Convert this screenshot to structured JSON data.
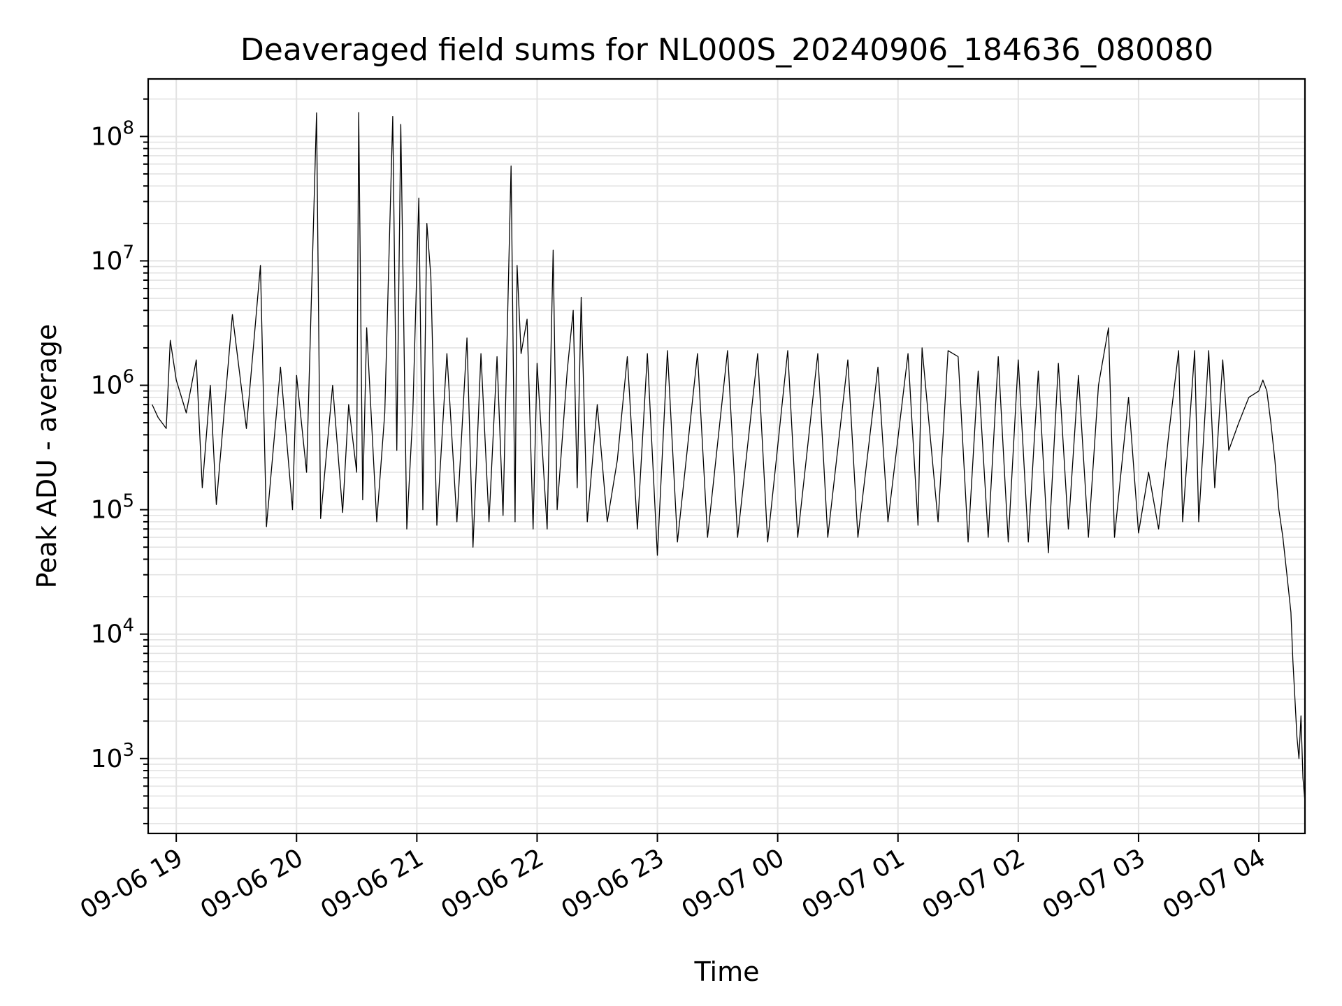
{
  "chart_data": {
    "type": "line",
    "title": "Deaveraged field sums for NL000S_20240906_184636_080080",
    "xlabel": "Time",
    "ylabel": "Peak ADU - average",
    "x_scale": "time",
    "y_scale": "log",
    "xlim": [
      "09-06 18:46",
      "09-07 04:23"
    ],
    "ylim": [
      250,
      290000000
    ],
    "x_ticks": [
      "09-06 19",
      "09-06 20",
      "09-06 21",
      "09-06 22",
      "09-06 23",
      "09-07 00",
      "09-07 01",
      "09-07 02",
      "09-07 03",
      "09-07 04"
    ],
    "y_ticks": [
      {
        "base": "10",
        "exp": "3",
        "value": 1000
      },
      {
        "base": "10",
        "exp": "4",
        "value": 10000
      },
      {
        "base": "10",
        "exp": "5",
        "value": 100000
      },
      {
        "base": "10",
        "exp": "6",
        "value": 1000000
      },
      {
        "base": "10",
        "exp": "7",
        "value": 10000000
      },
      {
        "base": "10",
        "exp": "8",
        "value": 100000000
      }
    ],
    "grid": true,
    "line_color": "#000000",
    "series": [
      {
        "points": [
          [
            "09-06 18:48",
            700000
          ],
          [
            "09-06 18:51",
            550000
          ],
          [
            "09-06 18:55",
            450000
          ],
          [
            "09-06 18:57",
            2300000
          ],
          [
            "09-06 19:00",
            1100000
          ],
          [
            "09-06 19:05",
            600000
          ],
          [
            "09-06 19:10",
            1600000
          ],
          [
            "09-06 19:13",
            150000
          ],
          [
            "09-06 19:17",
            1000000
          ],
          [
            "09-06 19:20",
            110000
          ],
          [
            "09-06 19:28",
            3700000
          ],
          [
            "09-06 19:35",
            450000
          ],
          [
            "09-06 19:42",
            9200000
          ],
          [
            "09-06 19:45",
            73000
          ],
          [
            "09-06 19:52",
            1400000
          ],
          [
            "09-06 19:58",
            100000
          ],
          [
            "09-06 20:00",
            1200000
          ],
          [
            "09-06 20:05",
            200000
          ],
          [
            "09-06 20:10",
            155000000
          ],
          [
            "09-06 20:12",
            85000
          ],
          [
            "09-06 20:18",
            1000000
          ],
          [
            "09-06 20:23",
            95000
          ],
          [
            "09-06 20:26",
            700000
          ],
          [
            "09-06 20:30",
            200000
          ],
          [
            "09-06 20:31",
            156000000
          ],
          [
            "09-06 20:33",
            120000
          ],
          [
            "09-06 20:35",
            2900000
          ],
          [
            "09-06 20:40",
            80000
          ],
          [
            "09-06 20:44",
            600000
          ],
          [
            "09-06 20:48",
            145000000
          ],
          [
            "09-06 20:50",
            300000
          ],
          [
            "09-06 20:52",
            125000000
          ],
          [
            "09-06 20:55",
            70000
          ],
          [
            "09-06 20:58",
            600000
          ],
          [
            "09-06 21:01",
            32000000
          ],
          [
            "09-06 21:03",
            100000
          ],
          [
            "09-06 21:05",
            20000000
          ],
          [
            "09-06 21:07",
            7500000
          ],
          [
            "09-06 21:10",
            75000
          ],
          [
            "09-06 21:15",
            1800000
          ],
          [
            "09-06 21:20",
            80000
          ],
          [
            "09-06 21:25",
            2400000
          ],
          [
            "09-06 21:28",
            50000
          ],
          [
            "09-06 21:32",
            1800000
          ],
          [
            "09-06 21:36",
            80000
          ],
          [
            "09-06 21:40",
            1700000
          ],
          [
            "09-06 21:43",
            90000
          ],
          [
            "09-06 21:47",
            58000000
          ],
          [
            "09-06 21:49",
            80000
          ],
          [
            "09-06 21:50",
            9200000
          ],
          [
            "09-06 21:52",
            1800000
          ],
          [
            "09-06 21:55",
            3400000
          ],
          [
            "09-06 21:58",
            70000
          ],
          [
            "09-06 22:00",
            1500000
          ],
          [
            "09-06 22:05",
            70000
          ],
          [
            "09-06 22:08",
            12200000
          ],
          [
            "09-06 22:10",
            100000
          ],
          [
            "09-06 22:15",
            1300000
          ],
          [
            "09-06 22:18",
            4000000
          ],
          [
            "09-06 22:20",
            150000
          ],
          [
            "09-06 22:22",
            5100000
          ],
          [
            "09-06 22:25",
            80000
          ],
          [
            "09-06 22:30",
            700000
          ],
          [
            "09-06 22:35",
            80000
          ],
          [
            "09-06 22:40",
            250000
          ],
          [
            "09-06 22:45",
            1700000
          ],
          [
            "09-06 22:50",
            70000
          ],
          [
            "09-06 22:55",
            1800000
          ],
          [
            "09-06 23:00",
            43000
          ],
          [
            "09-06 23:05",
            1900000
          ],
          [
            "09-06 23:10",
            55000
          ],
          [
            "09-06 23:20",
            1800000
          ],
          [
            "09-06 23:25",
            60000
          ],
          [
            "09-06 23:35",
            1900000
          ],
          [
            "09-06 23:40",
            60000
          ],
          [
            "09-06 23:50",
            1800000
          ],
          [
            "09-06 23:55",
            55000
          ],
          [
            "09-07 00:05",
            1900000
          ],
          [
            "09-07 00:10",
            60000
          ],
          [
            "09-07 00:20",
            1800000
          ],
          [
            "09-07 00:25",
            60000
          ],
          [
            "09-07 00:35",
            1600000
          ],
          [
            "09-07 00:40",
            60000
          ],
          [
            "09-07 00:50",
            1400000
          ],
          [
            "09-07 00:55",
            80000
          ],
          [
            "09-07 01:05",
            1800000
          ],
          [
            "09-07 01:10",
            75000
          ],
          [
            "09-07 01:12",
            2000000
          ],
          [
            "09-07 01:20",
            80000
          ],
          [
            "09-07 01:25",
            1900000
          ],
          [
            "09-07 01:30",
            1700000
          ],
          [
            "09-07 01:35",
            55000
          ],
          [
            "09-07 01:40",
            1300000
          ],
          [
            "09-07 01:45",
            60000
          ],
          [
            "09-07 01:50",
            1700000
          ],
          [
            "09-07 01:55",
            55000
          ],
          [
            "09-07 02:00",
            1600000
          ],
          [
            "09-07 02:05",
            55000
          ],
          [
            "09-07 02:10",
            1300000
          ],
          [
            "09-07 02:15",
            45000
          ],
          [
            "09-07 02:20",
            1500000
          ],
          [
            "09-07 02:25",
            70000
          ],
          [
            "09-07 02:30",
            1200000
          ],
          [
            "09-07 02:35",
            60000
          ],
          [
            "09-07 02:40",
            1000000
          ],
          [
            "09-07 02:45",
            2900000
          ],
          [
            "09-07 02:48",
            60000
          ],
          [
            "09-07 02:55",
            800000
          ],
          [
            "09-07 03:00",
            65000
          ],
          [
            "09-07 03:05",
            200000
          ],
          [
            "09-07 03:10",
            70000
          ],
          [
            "09-07 03:15",
            400000
          ],
          [
            "09-07 03:20",
            1900000
          ],
          [
            "09-07 03:22",
            80000
          ],
          [
            "09-07 03:28",
            1900000
          ],
          [
            "09-07 03:30",
            80000
          ],
          [
            "09-07 03:35",
            1900000
          ],
          [
            "09-07 03:38",
            150000
          ],
          [
            "09-07 03:42",
            1600000
          ],
          [
            "09-07 03:45",
            300000
          ],
          [
            "09-07 03:50",
            500000
          ],
          [
            "09-07 03:55",
            800000
          ],
          [
            "09-07 04:00",
            900000
          ],
          [
            "09-07 04:02",
            1100000
          ],
          [
            "09-07 04:04",
            900000
          ],
          [
            "09-07 04:06",
            500000
          ],
          [
            "09-07 04:08",
            250000
          ],
          [
            "09-07 04:10",
            100000
          ],
          [
            "09-07 04:12",
            60000
          ],
          [
            "09-07 04:14",
            30000
          ],
          [
            "09-07 04:16",
            15000
          ],
          [
            "09-07 04:17",
            6000
          ],
          [
            "09-07 04:18",
            3000
          ],
          [
            "09-07 04:19",
            1500
          ],
          [
            "09-07 04:20",
            1000
          ],
          [
            "09-07 04:21",
            2200
          ],
          [
            "09-07 04:22",
            700
          ],
          [
            "09-07 04:23",
            450
          ]
        ]
      }
    ]
  }
}
